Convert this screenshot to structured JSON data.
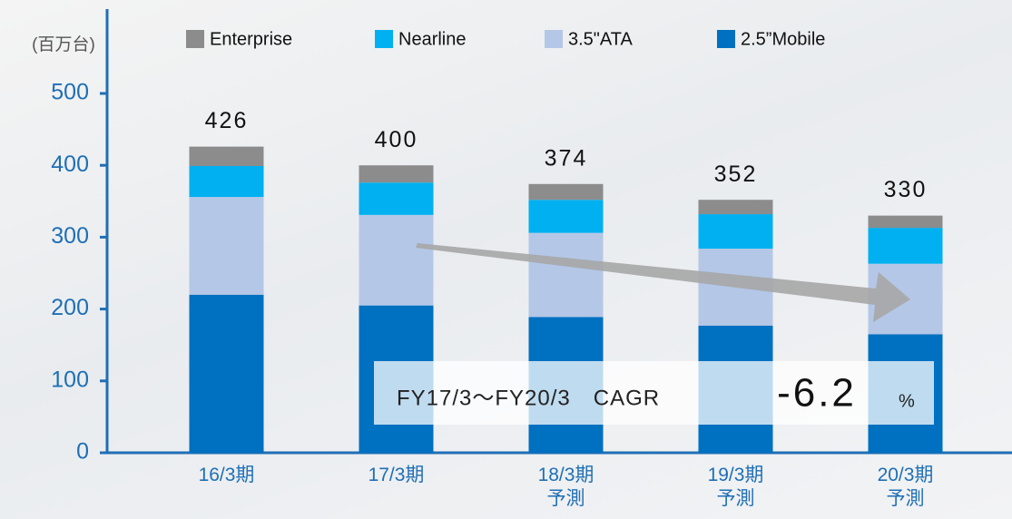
{
  "chart_data": {
    "type": "stacked_bar",
    "unit_label": "(百万台)",
    "categories": [
      "16/3期",
      "17/3期",
      "18/3期\n予測",
      "19/3期\n予測",
      "20/3期\n予測"
    ],
    "series": [
      {
        "name": "Enterprise",
        "color": "#8c8c8c",
        "values": [
          27,
          24,
          22,
          20,
          17
        ]
      },
      {
        "name": "Nearline",
        "color": "#00b0f0",
        "values": [
          43,
          45,
          46,
          48,
          50
        ]
      },
      {
        "name": "3.5\"ATA",
        "color": "#b4c7e7",
        "values": [
          136,
          126,
          117,
          107,
          98
        ]
      },
      {
        "name": "2.5”Mobile",
        "color": "#0070c0",
        "values": [
          220,
          205,
          189,
          177,
          165
        ]
      }
    ],
    "totals": [
      426,
      400,
      374,
      352,
      330
    ],
    "ylim": [
      0,
      500
    ],
    "yticks": [
      0,
      100,
      200,
      300,
      400,
      500
    ],
    "annotation": {
      "text": "FY17/3～FY20/3　CAGR",
      "value": -6.2,
      "unit": "%"
    }
  }
}
